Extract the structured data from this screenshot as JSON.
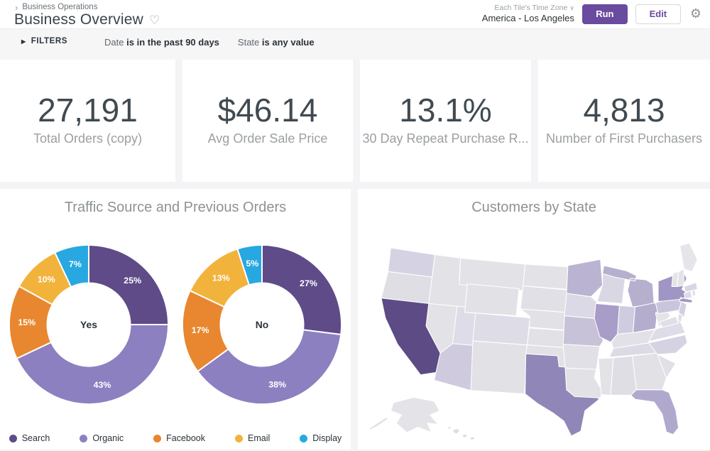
{
  "icons": {
    "breadcrumb_chevron": "›",
    "dropdown_chevron": "∨",
    "filters_arrow": "▶",
    "gear": "⚙",
    "heart": "♡"
  },
  "header": {
    "breadcrumb": "Business Operations",
    "title": "Business Overview",
    "timezone_label": "Each Tile's Time Zone",
    "timezone_value": "America - Los Angeles",
    "run_label": "Run",
    "edit_label": "Edit"
  },
  "filters": {
    "label": "FILTERS",
    "items": [
      {
        "field": "Date",
        "condition": "is in the past 90 days"
      },
      {
        "field": "State",
        "condition": "is any value"
      }
    ]
  },
  "kpis": [
    {
      "value": "27,191",
      "label": "Total Orders (copy)"
    },
    {
      "value": "$46.14",
      "label": "Avg Order Sale Price"
    },
    {
      "value": "13.1%",
      "label": "30 Day Repeat Purchase R..."
    },
    {
      "value": "4,813",
      "label": "Number of First Purchasers"
    }
  ],
  "chart_data": [
    {
      "type": "pie",
      "subtype": "donut",
      "title": "Traffic Source and Previous Orders",
      "categories": [
        "Search",
        "Organic",
        "Facebook",
        "Email",
        "Display"
      ],
      "colors": [
        "#5e4b88",
        "#8c80c1",
        "#e8872f",
        "#f2b33c",
        "#28a8e0"
      ],
      "series": [
        {
          "name": "Yes",
          "values": [
            25,
            43,
            15,
            10,
            7
          ]
        },
        {
          "name": "No",
          "values": [
            27,
            38,
            17,
            13,
            5
          ]
        }
      ],
      "value_format": "percent",
      "legend_position": "bottom"
    },
    {
      "type": "heatmap",
      "subtype": "choropleth-usa",
      "title": "Customers by State",
      "state_colors": {
        "WA": "#d5d2e3",
        "OR": "#dfdee5",
        "CA": "#5d4b85",
        "ID": "#e3e2e7",
        "NV": "#e3e2e6",
        "UT": "#dedce8",
        "AZ": "#cfcade",
        "MT": "#e3e2e7",
        "WY": "#e2e1e6",
        "CO": "#dddce7",
        "NM": "#e2e1e6",
        "ND": "#e3e2e7",
        "SD": "#e1e0e6",
        "NE": "#e2e1e6",
        "KS": "#e2e1e6",
        "OK": "#e2e1e6",
        "TX": "#9086b8",
        "MN": "#bab3d2",
        "IA": "#dbd9e6",
        "MO": "#c7c2d8",
        "AR": "#e1e0e6",
        "LA": "#e2e1e6",
        "WI": "#dad7e5",
        "IL": "#a89dc8",
        "MI": "#b7afce",
        "IN": "#d0cce0",
        "OH": "#b5adce",
        "KY": "#e2e1e7",
        "TN": "#dcdae4",
        "MS": "#e3e2e6",
        "AL": "#dfdee5",
        "GA": "#e2e1e6",
        "FL": "#b1a9cd",
        "SC": "#e1e0e7",
        "NC": "#d5d2e2",
        "VA": "#dedce7",
        "WV": "#e4e3e7",
        "PA": "#cac5dc",
        "NY": "#a095c4",
        "NJ": "#d2cfe0",
        "MD": "#e0dfe6",
        "DE": "#e0dfe6",
        "CT": "#dddce5",
        "RI": "#dddce5",
        "MA": "#d8d6e3",
        "VT": "#e4e3e7",
        "NH": "#e4e3e7",
        "ME": "#e6e5e9",
        "AK": "#e4e3e7",
        "HI": "#dddce5"
      }
    }
  ],
  "colors": {
    "accent": "#6a4b9f",
    "kpi_value": "#404a50",
    "tile_title": "#8d9296"
  }
}
